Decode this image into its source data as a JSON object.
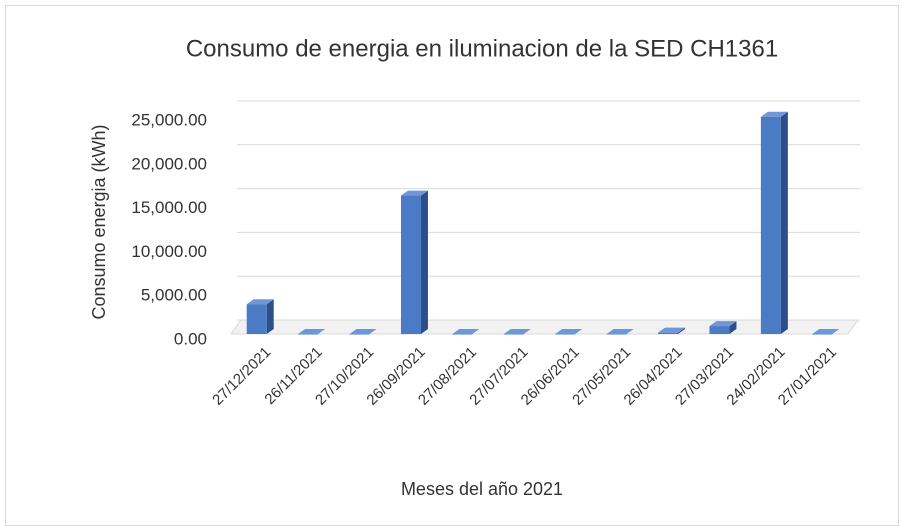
{
  "chart_data": {
    "type": "bar3d",
    "title": "Consumo de energia en iluminacion de la SED CH1361",
    "x_label": "Meses del año 2021",
    "y_label": "Consumo energia (kWh)",
    "categories": [
      "27/12/2021",
      "26/11/2021",
      "27/10/2021",
      "26/09/2021",
      "27/08/2021",
      "27/07/2021",
      "26/06/2021",
      "27/05/2021",
      "26/04/2021",
      "27/03/2021",
      "24/02/2021",
      "27/01/2021"
    ],
    "values": [
      3400,
      0,
      0,
      15800,
      0,
      0,
      0,
      0,
      150,
      900,
      24800,
      0
    ],
    "color": "#4a7bc4",
    "ylim": [
      0,
      25000
    ],
    "yticks": [
      {
        "value": 0,
        "label": "0.00"
      },
      {
        "value": 5000,
        "label": "5,000.00"
      },
      {
        "value": 10000,
        "label": "10,000.00"
      },
      {
        "value": 15000,
        "label": "15,000.00"
      },
      {
        "value": 20000,
        "label": "20,000.00"
      },
      {
        "value": 25000,
        "label": "25,000.00"
      }
    ],
    "grid": true
  }
}
